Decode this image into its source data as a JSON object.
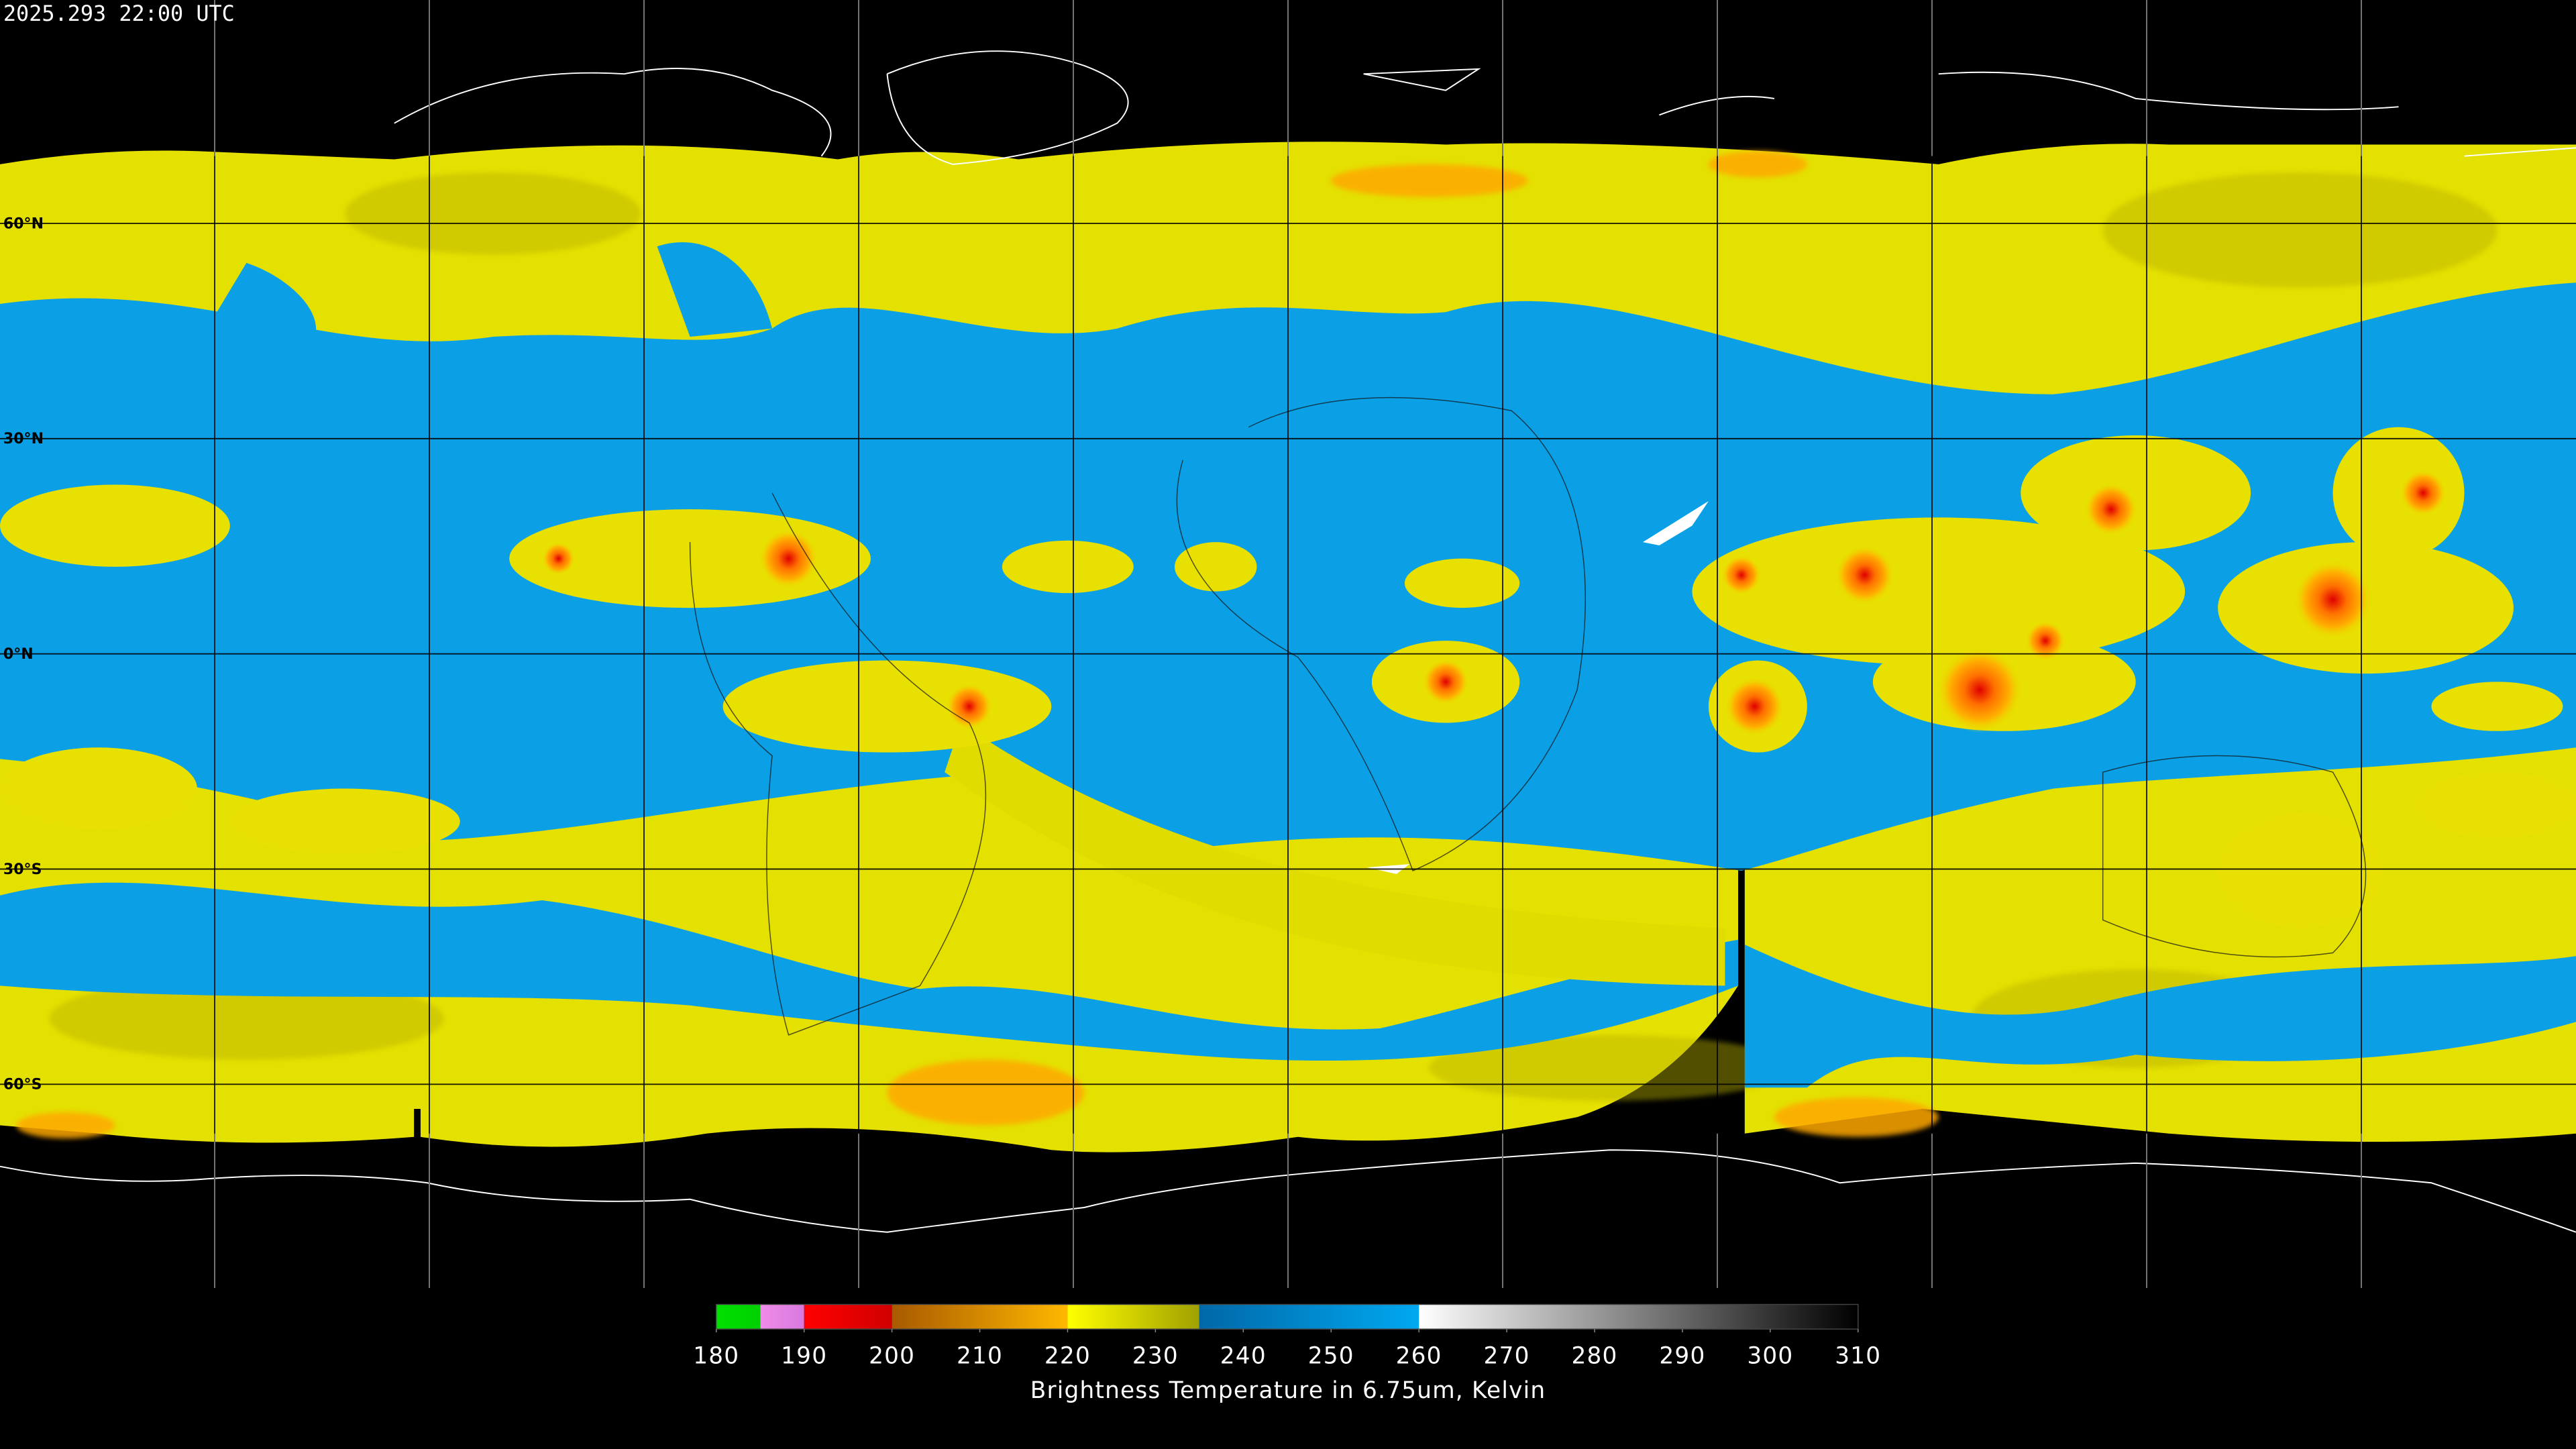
{
  "header": {
    "timestamp": "2025.293 22:00 UTC"
  },
  "map": {
    "latitude_labels": [
      "60°N",
      "30°N",
      "0°N",
      "30°S",
      "60°S"
    ]
  },
  "colorbar": {
    "range": [
      180,
      310
    ],
    "ticks": [
      180,
      190,
      200,
      210,
      220,
      230,
      240,
      250,
      260,
      270,
      280,
      290,
      300,
      310
    ],
    "segments": [
      {
        "from": 180,
        "to": 185,
        "colors": [
          "#00e000",
          "#00d000"
        ]
      },
      {
        "from": 185,
        "to": 190,
        "colors": [
          "#f08ce8",
          "#d878e0"
        ]
      },
      {
        "from": 190,
        "to": 200,
        "colors": [
          "#ff0000",
          "#d00000"
        ]
      },
      {
        "from": 200,
        "to": 220,
        "colors": [
          "#a85a00",
          "#ffb800"
        ]
      },
      {
        "from": 220,
        "to": 235,
        "colors": [
          "#ffff00",
          "#a0a000"
        ]
      },
      {
        "from": 235,
        "to": 260,
        "colors": [
          "#0068a8",
          "#00a8f0"
        ]
      },
      {
        "from": 260,
        "to": 310,
        "colors": [
          "#ffffff",
          "#000000"
        ]
      }
    ],
    "title": "Brightness Temperature in 6.75um, Kelvin"
  }
}
